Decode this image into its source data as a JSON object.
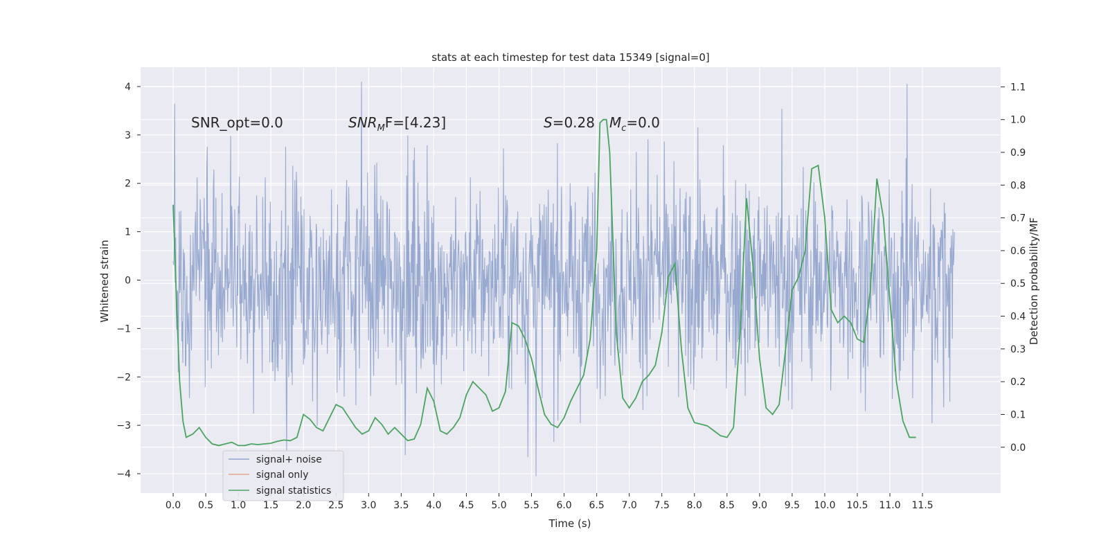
{
  "chart_data": {
    "type": "line",
    "title": "stats at each timestep for test data 15349 [signal=0]",
    "xlabel": "Time (s)",
    "ylabel": "Whitened strain",
    "y2label": "Detection probability/MF",
    "xlim": [
      -0.5,
      12.7
    ],
    "ylim": [
      -4.4,
      4.4
    ],
    "y2lim": [
      -0.14,
      1.16
    ],
    "x_ticks": [
      "0.0",
      "0.5",
      "1.0",
      "1.5",
      "2.0",
      "2.5",
      "3.0",
      "3.5",
      "4.0",
      "4.5",
      "5.0",
      "5.5",
      "6.0",
      "6.5",
      "7.0",
      "7.5",
      "8.0",
      "8.5",
      "9.0",
      "9.5",
      "10.0",
      "10.5",
      "11.0",
      "11.5"
    ],
    "y_ticks": [
      "4",
      "3",
      "2",
      "1",
      "0",
      "−1",
      "−2",
      "−3",
      "−4"
    ],
    "y2_ticks": [
      "1.1",
      "1.0",
      "0.9",
      "0.8",
      "0.7",
      "0.6",
      "0.5",
      "0.4",
      "0.3",
      "0.2",
      "0.1",
      "0.0"
    ],
    "grid": true,
    "legend_position": "lower-left",
    "annotations": {
      "snr_opt": "SNR_opt=0.0",
      "snr_mf_prefix": "SNR",
      "snr_mf_sub": "M",
      "snr_mf_suffix": "F=[4.23]",
      "s_label": "S",
      "s_value": "=0.28",
      "mc_label": "M",
      "mc_sub": "c",
      "mc_value": "=0.0"
    },
    "series": [
      {
        "name": "signal+ noise",
        "color": "#8fa2cc",
        "x_range": [
          0.0,
          11.99
        ],
        "envelope": "noise band roughly -2.6..2.4 with spikes up to 4.1 and down to -4.05"
      },
      {
        "name": "signal only",
        "color": "#e8a58e",
        "values": []
      },
      {
        "name": "signal statistics",
        "color": "#4aa35f",
        "axis": "right",
        "points": [
          [
            0.0,
            0.74
          ],
          [
            0.05,
            0.45
          ],
          [
            0.1,
            0.2
          ],
          [
            0.15,
            0.08
          ],
          [
            0.2,
            0.03
          ],
          [
            0.3,
            0.04
          ],
          [
            0.4,
            0.06
          ],
          [
            0.5,
            0.03
          ],
          [
            0.6,
            0.01
          ],
          [
            0.7,
            0.005
          ],
          [
            0.8,
            0.01
          ],
          [
            0.9,
            0.015
          ],
          [
            1.0,
            0.005
          ],
          [
            1.1,
            0.005
          ],
          [
            1.2,
            0.01
          ],
          [
            1.3,
            0.008
          ],
          [
            1.4,
            0.01
          ],
          [
            1.5,
            0.012
          ],
          [
            1.6,
            0.018
          ],
          [
            1.7,
            0.022
          ],
          [
            1.8,
            0.02
          ],
          [
            1.9,
            0.03
          ],
          [
            2.0,
            0.1
          ],
          [
            2.1,
            0.085
          ],
          [
            2.2,
            0.06
          ],
          [
            2.3,
            0.05
          ],
          [
            2.4,
            0.09
          ],
          [
            2.5,
            0.13
          ],
          [
            2.6,
            0.12
          ],
          [
            2.7,
            0.09
          ],
          [
            2.8,
            0.06
          ],
          [
            2.9,
            0.04
          ],
          [
            3.0,
            0.05
          ],
          [
            3.1,
            0.09
          ],
          [
            3.2,
            0.07
          ],
          [
            3.3,
            0.04
          ],
          [
            3.4,
            0.06
          ],
          [
            3.5,
            0.04
          ],
          [
            3.6,
            0.02
          ],
          [
            3.7,
            0.025
          ],
          [
            3.8,
            0.07
          ],
          [
            3.9,
            0.18
          ],
          [
            4.0,
            0.14
          ],
          [
            4.1,
            0.05
          ],
          [
            4.2,
            0.04
          ],
          [
            4.3,
            0.06
          ],
          [
            4.4,
            0.09
          ],
          [
            4.5,
            0.16
          ],
          [
            4.6,
            0.2
          ],
          [
            4.7,
            0.18
          ],
          [
            4.8,
            0.16
          ],
          [
            4.9,
            0.11
          ],
          [
            5.0,
            0.12
          ],
          [
            5.1,
            0.17
          ],
          [
            5.2,
            0.38
          ],
          [
            5.3,
            0.37
          ],
          [
            5.4,
            0.33
          ],
          [
            5.5,
            0.27
          ],
          [
            5.6,
            0.18
          ],
          [
            5.7,
            0.1
          ],
          [
            5.8,
            0.07
          ],
          [
            5.9,
            0.06
          ],
          [
            6.0,
            0.09
          ],
          [
            6.1,
            0.14
          ],
          [
            6.2,
            0.18
          ],
          [
            6.3,
            0.22
          ],
          [
            6.4,
            0.33
          ],
          [
            6.5,
            0.6
          ],
          [
            6.55,
            0.99
          ],
          [
            6.6,
            1.0
          ],
          [
            6.65,
            1.0
          ],
          [
            6.7,
            0.9
          ],
          [
            6.8,
            0.35
          ],
          [
            6.9,
            0.15
          ],
          [
            7.0,
            0.12
          ],
          [
            7.1,
            0.15
          ],
          [
            7.2,
            0.2
          ],
          [
            7.3,
            0.22
          ],
          [
            7.4,
            0.25
          ],
          [
            7.5,
            0.35
          ],
          [
            7.6,
            0.52
          ],
          [
            7.7,
            0.56
          ],
          [
            7.8,
            0.3
          ],
          [
            7.9,
            0.12
          ],
          [
            8.0,
            0.075
          ],
          [
            8.1,
            0.07
          ],
          [
            8.2,
            0.065
          ],
          [
            8.3,
            0.05
          ],
          [
            8.4,
            0.035
          ],
          [
            8.5,
            0.03
          ],
          [
            8.6,
            0.06
          ],
          [
            8.7,
            0.35
          ],
          [
            8.8,
            0.76
          ],
          [
            8.9,
            0.55
          ],
          [
            9.0,
            0.27
          ],
          [
            9.1,
            0.12
          ],
          [
            9.2,
            0.1
          ],
          [
            9.3,
            0.13
          ],
          [
            9.4,
            0.3
          ],
          [
            9.5,
            0.48
          ],
          [
            9.6,
            0.52
          ],
          [
            9.7,
            0.6
          ],
          [
            9.8,
            0.85
          ],
          [
            9.9,
            0.86
          ],
          [
            10.0,
            0.7
          ],
          [
            10.1,
            0.42
          ],
          [
            10.2,
            0.38
          ],
          [
            10.3,
            0.4
          ],
          [
            10.4,
            0.38
          ],
          [
            10.5,
            0.33
          ],
          [
            10.6,
            0.32
          ],
          [
            10.7,
            0.48
          ],
          [
            10.8,
            0.82
          ],
          [
            10.9,
            0.7
          ],
          [
            11.0,
            0.45
          ],
          [
            11.1,
            0.2
          ],
          [
            11.2,
            0.08
          ],
          [
            11.3,
            0.03
          ],
          [
            11.4,
            0.03
          ]
        ]
      }
    ]
  },
  "legend": {
    "items": [
      {
        "label": "signal+ noise",
        "color": "#8fa2cc"
      },
      {
        "label": "signal only",
        "color": "#e8a58e"
      },
      {
        "label": "signal statistics",
        "color": "#4aa35f"
      }
    ]
  },
  "colors": {
    "plot_background": "#eaeaf2",
    "grid": "#ffffff",
    "text": "#262626"
  }
}
